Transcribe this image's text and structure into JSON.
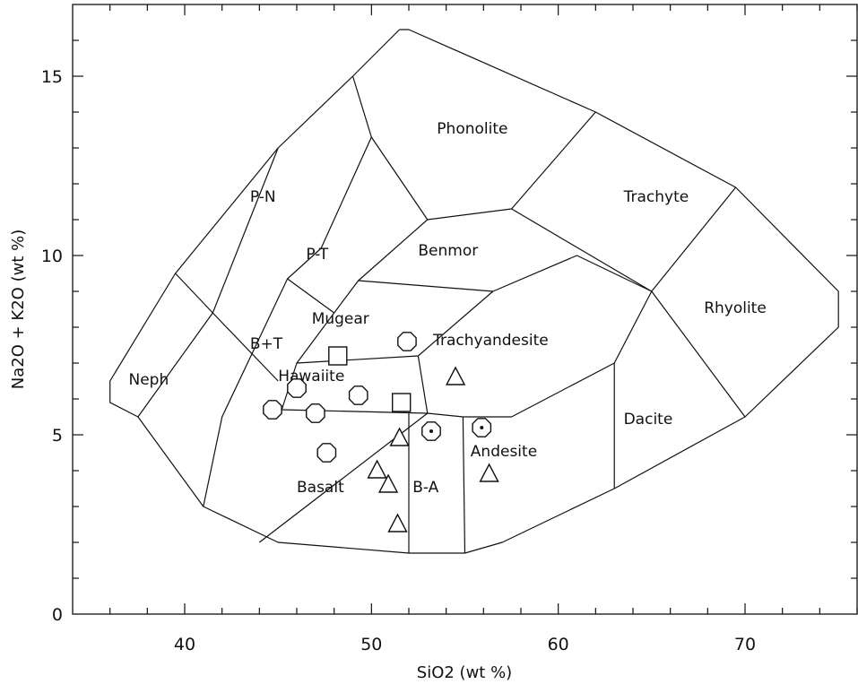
{
  "chart_data": {
    "type": "scatter",
    "title": "",
    "xlabel": "SiO2  (wt %)",
    "ylabel": "Na2O + K2O  (wt %)",
    "xlim": [
      34,
      76
    ],
    "ylim": [
      0,
      17
    ],
    "x_major_ticks": [
      40,
      50,
      60,
      70
    ],
    "x_tick_labels": [
      "40",
      "50",
      "60",
      "70"
    ],
    "y_major_ticks": [
      0,
      5,
      10,
      15
    ],
    "y_tick_labels": [
      "0",
      "5",
      "10",
      "15"
    ],
    "x_minor_step": 2,
    "y_minor_step": 1,
    "grid": false,
    "field_boundaries": [
      [
        [
          51.5,
          16.3
        ],
        [
          52.0,
          16.3
        ],
        [
          62.0,
          14.0
        ],
        [
          69.5,
          11.9
        ],
        [
          75.0,
          9.0
        ],
        [
          75.0,
          8.0
        ],
        [
          70.0,
          5.5
        ],
        [
          63.0,
          3.5
        ],
        [
          57.0,
          2.0
        ],
        [
          55.0,
          1.7
        ],
        [
          52.0,
          1.7
        ],
        [
          45.0,
          2.0
        ],
        [
          41.0,
          3.0
        ],
        [
          37.5,
          5.5
        ],
        [
          36.0,
          5.9
        ],
        [
          36.0,
          6.5
        ],
        [
          39.5,
          9.5
        ],
        [
          45.0,
          13.0
        ],
        [
          49.0,
          15.0
        ],
        [
          51.5,
          16.3
        ]
      ],
      [
        [
          49.0,
          15.0
        ],
        [
          50.0,
          13.3
        ],
        [
          53.0,
          11.0
        ],
        [
          57.5,
          11.3
        ],
        [
          62.0,
          14.0
        ]
      ],
      [
        [
          57.5,
          11.3
        ],
        [
          65.0,
          9.0
        ],
        [
          69.5,
          11.9
        ]
      ],
      [
        [
          65.0,
          9.0
        ],
        [
          70.0,
          5.5
        ]
      ],
      [
        [
          39.5,
          9.5
        ],
        [
          41.5,
          8.4
        ],
        [
          45.0,
          6.5
        ]
      ],
      [
        [
          45.0,
          13.0
        ],
        [
          41.5,
          8.4
        ],
        [
          37.5,
          5.5
        ]
      ],
      [
        [
          50.0,
          13.3
        ],
        [
          47.3,
          10.2
        ],
        [
          45.5,
          9.35
        ],
        [
          42.0,
          5.5
        ],
        [
          41.0,
          3.0
        ]
      ],
      [
        [
          45.5,
          9.35
        ],
        [
          48.0,
          8.4
        ],
        [
          49.3,
          9.3
        ],
        [
          53.0,
          11.0
        ]
      ],
      [
        [
          49.3,
          9.3
        ],
        [
          56.5,
          9.0
        ],
        [
          61.0,
          10.0
        ],
        [
          65.0,
          9.0
        ]
      ],
      [
        [
          48.0,
          8.4
        ],
        [
          46.0,
          7.0
        ],
        [
          45.2,
          5.7
        ],
        [
          53.0,
          5.6
        ],
        [
          54.9,
          5.5
        ],
        [
          57.5,
          5.5
        ],
        [
          63.0,
          7.0
        ],
        [
          65.0,
          9.0
        ]
      ],
      [
        [
          46.0,
          7.0
        ],
        [
          52.5,
          7.2
        ],
        [
          56.5,
          9.0
        ]
      ],
      [
        [
          52.5,
          7.2
        ],
        [
          53.0,
          5.6
        ],
        [
          44.0,
          2.0
        ]
      ],
      [
        [
          52.0,
          5.6
        ],
        [
          52.0,
          1.7
        ]
      ],
      [
        [
          54.9,
          5.5
        ],
        [
          55.0,
          1.7
        ]
      ],
      [
        [
          63.0,
          7.0
        ],
        [
          63.0,
          3.5
        ]
      ]
    ],
    "field_labels": [
      {
        "text": "Phonolite",
        "x": 53.5,
        "y": 13.4
      },
      {
        "text": "P-N",
        "x": 43.5,
        "y": 11.5
      },
      {
        "text": "Trachyte",
        "x": 63.5,
        "y": 11.5
      },
      {
        "text": "P-T",
        "x": 46.5,
        "y": 9.9
      },
      {
        "text": "Benmor",
        "x": 52.5,
        "y": 10.0
      },
      {
        "text": "Rhyolite",
        "x": 67.8,
        "y": 8.4
      },
      {
        "text": "Mugear",
        "x": 46.8,
        "y": 8.1
      },
      {
        "text": "B+T",
        "x": 43.5,
        "y": 7.4
      },
      {
        "text": "Trachyandesite",
        "x": 53.3,
        "y": 7.5
      },
      {
        "text": "Hawaiite",
        "x": 45.0,
        "y": 6.5
      },
      {
        "text": "Neph",
        "x": 37.0,
        "y": 6.4
      },
      {
        "text": "Dacite",
        "x": 63.5,
        "y": 5.3
      },
      {
        "text": "Andesite",
        "x": 55.3,
        "y": 4.4
      },
      {
        "text": "Basalt",
        "x": 46.0,
        "y": 3.4
      },
      {
        "text": "B-A",
        "x": 52.2,
        "y": 3.4
      }
    ],
    "series": [
      {
        "marker": "octagon",
        "points": [
          [
            44.7,
            5.7
          ],
          [
            46.0,
            6.3
          ],
          [
            47.0,
            5.6
          ],
          [
            49.3,
            6.1
          ],
          [
            47.6,
            4.5
          ],
          [
            51.9,
            7.6
          ]
        ]
      },
      {
        "marker": "square",
        "points": [
          [
            48.2,
            7.2
          ],
          [
            51.6,
            5.9
          ]
        ]
      },
      {
        "marker": "triangle",
        "points": [
          [
            51.5,
            4.9
          ],
          [
            50.3,
            4.0
          ],
          [
            50.9,
            3.6
          ],
          [
            51.4,
            2.5
          ],
          [
            54.5,
            6.6
          ],
          [
            56.3,
            3.9
          ]
        ]
      },
      {
        "marker": "dotted-circle",
        "points": [
          [
            53.2,
            5.1
          ],
          [
            55.9,
            5.2
          ]
        ]
      }
    ]
  }
}
